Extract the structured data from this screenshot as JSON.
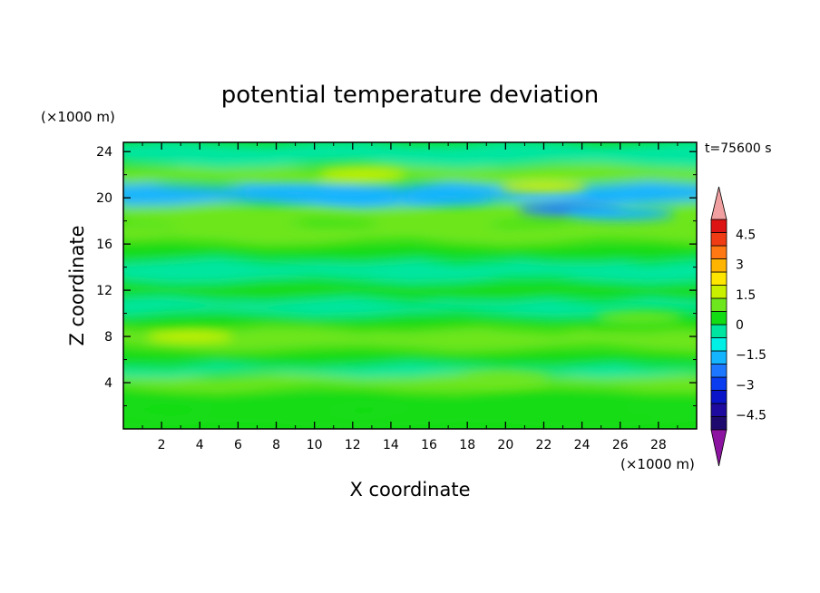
{
  "chart_data": {
    "type": "heatmap",
    "title": "potential temperature deviation",
    "xlabel": "X coordinate",
    "ylabel": "Z coordinate",
    "x_units": "(×1000 m)",
    "y_units": "(×1000 m)",
    "time_label": "t=75600 s",
    "xlim": [
      0,
      30
    ],
    "ylim": [
      0,
      24.8
    ],
    "x_ticks": [
      2,
      4,
      6,
      8,
      10,
      12,
      14,
      16,
      18,
      20,
      22,
      24,
      26,
      28
    ],
    "y_ticks": [
      4,
      8,
      12,
      16,
      20,
      24
    ],
    "colorbar": {
      "levels": [
        -5.25,
        -4.5,
        -3.75,
        -3,
        -2.25,
        -1.5,
        -0.75,
        0,
        0.75,
        1.5,
        2.25,
        3,
        3.75,
        4.5,
        5.25
      ],
      "labels": [
        "4.5",
        "3",
        "1.5",
        "0",
        "−1.5",
        "−3",
        "−4.5"
      ],
      "label_values": [
        4.5,
        3,
        1.5,
        0,
        -1.5,
        -3,
        -4.5
      ],
      "colors": [
        "#1e0a6e",
        "#1e0a9e",
        "#0a14c8",
        "#0a3cf0",
        "#1e78ff",
        "#14b4ff",
        "#00f0e6",
        "#00e6a0",
        "#14dc14",
        "#6ee61e",
        "#c8f000",
        "#ffe600",
        "#ffb400",
        "#ff7814",
        "#f03c14",
        "#dc1414"
      ],
      "over_color": "#f0a0a0",
      "under_color": "#8c14a0"
    },
    "field_bands": [
      {
        "z_center": 0.8,
        "value": 0.4
      },
      {
        "z_center": 2.5,
        "value": 0.1
      },
      {
        "z_center": 4.3,
        "value": 0.8
      },
      {
        "z_center": 5.0,
        "value": -0.5
      },
      {
        "z_center": 6.0,
        "value": 0.3
      },
      {
        "z_center": 7.9,
        "value": 1.0
      },
      {
        "z_center": 9.4,
        "value": 0.5
      },
      {
        "z_center": 10.5,
        "value": -0.3
      },
      {
        "z_center": 12.0,
        "value": 0.3
      },
      {
        "z_center": 13.7,
        "value": -0.4
      },
      {
        "z_center": 15.5,
        "value": 0.2
      },
      {
        "z_center": 16.8,
        "value": 0.9
      },
      {
        "z_center": 18.8,
        "value": 1.1
      },
      {
        "z_center": 20.3,
        "value": -1.6
      },
      {
        "z_center": 22.0,
        "value": 1.0
      },
      {
        "z_center": 23.6,
        "value": -0.5
      }
    ],
    "field_extremes": [
      {
        "x": 23.5,
        "z": 19.0,
        "value": -2.8
      },
      {
        "x": 26.0,
        "z": 18.6,
        "value": -2.1
      },
      {
        "x": 9.0,
        "z": 20.4,
        "value": -2.2
      },
      {
        "x": 12.0,
        "z": 20.2,
        "value": -2.0
      },
      {
        "x": 17.0,
        "z": 20.1,
        "value": -1.9
      },
      {
        "x": 12.5,
        "z": 22.0,
        "value": 1.6
      },
      {
        "x": 22.0,
        "z": 21.0,
        "value": 1.5
      },
      {
        "x": 3.5,
        "z": 8.0,
        "value": 1.6
      },
      {
        "x": 27.0,
        "z": 9.6,
        "value": 1.4
      },
      {
        "x": 20.0,
        "z": 4.3,
        "value": 1.4
      }
    ]
  }
}
